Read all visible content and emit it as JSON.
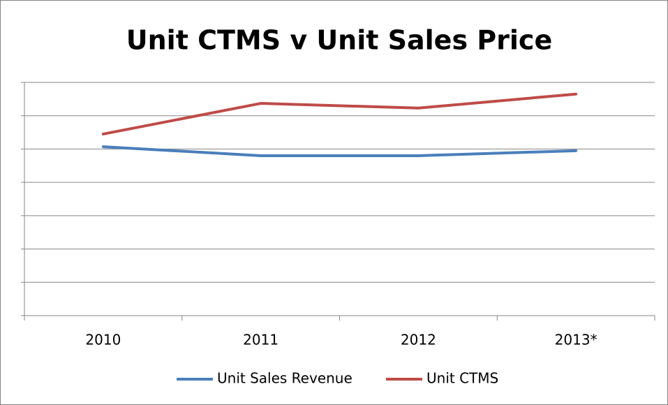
{
  "chart_data": {
    "type": "line",
    "title": "Unit CTMS v Unit Sales Price",
    "categories": [
      "2010",
      "2011",
      "2012",
      "2013*"
    ],
    "series": [
      {
        "name": "Unit Sales Revenue",
        "color": "#4a7ebb",
        "values": [
          5.07,
          4.8,
          4.8,
          4.95
        ]
      },
      {
        "name": "Unit CTMS",
        "color": "#be4b48",
        "values": [
          5.45,
          6.37,
          6.23,
          6.65
        ]
      }
    ],
    "ylim": [
      0,
      7
    ],
    "yticks": [
      0,
      1,
      2,
      3,
      4,
      5,
      6,
      7
    ],
    "grid": true,
    "legend": "bottom"
  }
}
